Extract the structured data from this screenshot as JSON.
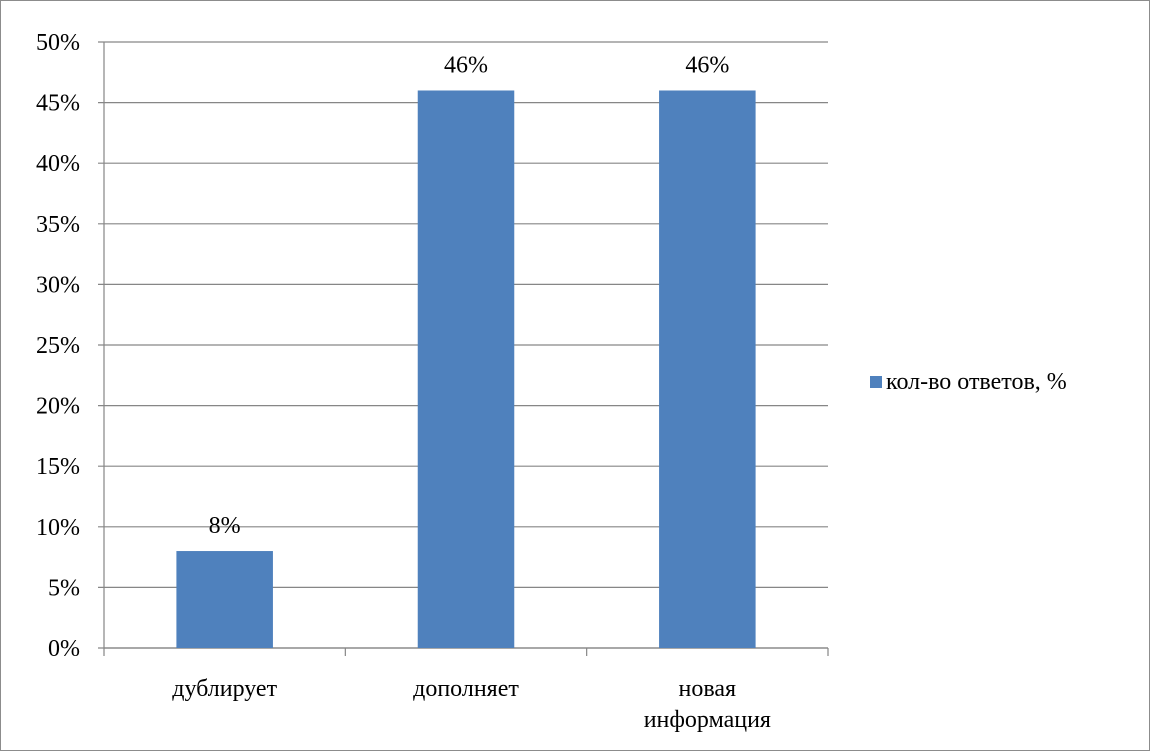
{
  "chart_data": {
    "type": "bar",
    "categories": [
      [
        "дублирует"
      ],
      [
        "дополняет"
      ],
      [
        "новая",
        "информация"
      ]
    ],
    "series": [
      {
        "name": "кол-во ответов, %",
        "values": [
          8,
          46,
          46
        ],
        "color": "#4F81BD"
      }
    ],
    "data_labels": [
      "8%",
      "46%",
      "46%"
    ],
    "ylim": [
      0,
      50
    ],
    "y_ticks": [
      0,
      5,
      10,
      15,
      20,
      25,
      30,
      35,
      40,
      45,
      50
    ],
    "y_tick_labels": [
      "0%",
      "5%",
      "10%",
      "15%",
      "20%",
      "25%",
      "30%",
      "35%",
      "40%",
      "45%",
      "50%"
    ],
    "grid": true,
    "legend_position": "right",
    "gridline_color": "#868686",
    "axis_color": "#868686"
  }
}
